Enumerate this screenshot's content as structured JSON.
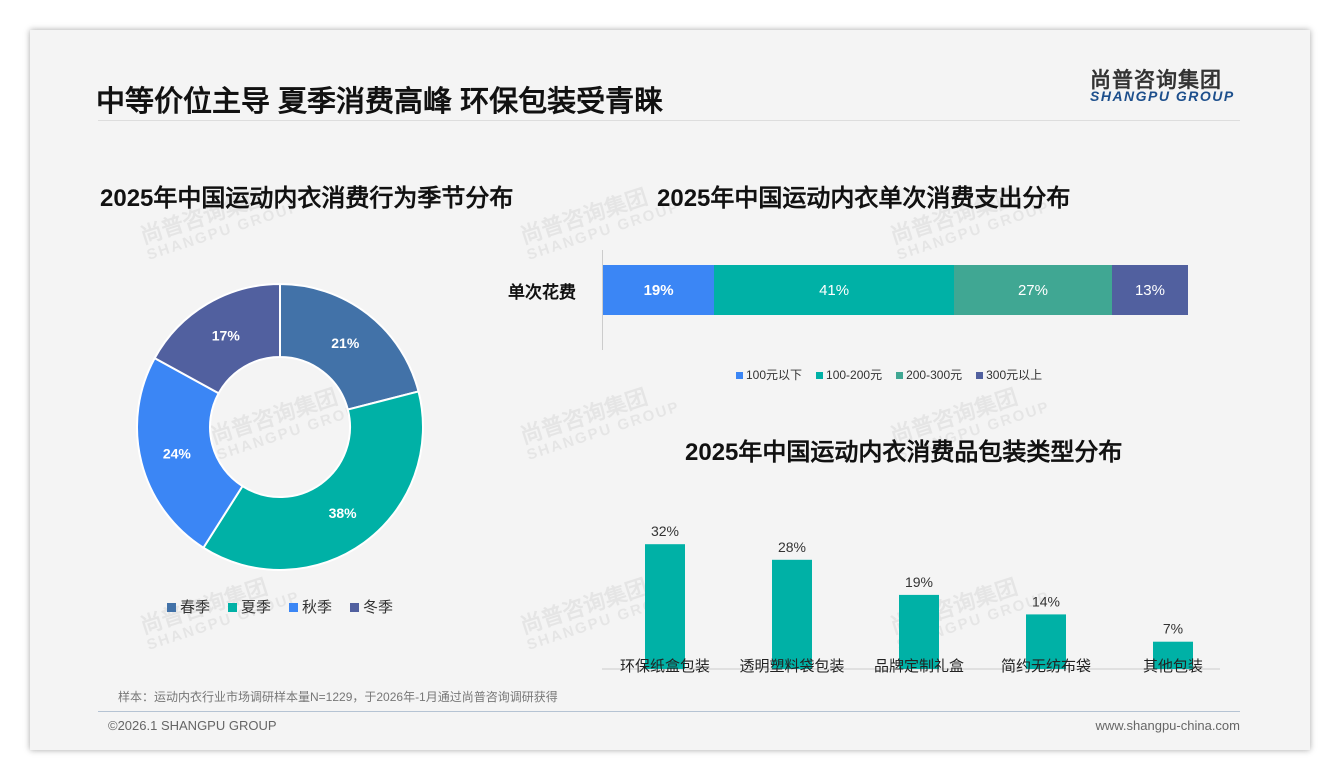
{
  "header": {
    "title": "中等价位主导 夏季消费高峰 环保包装受青睐",
    "logo_cn": "尚普咨询集团",
    "logo_en": "SHANGPU GROUP"
  },
  "watermark": {
    "cn": "尚普咨询集团",
    "en": "SHANGPU GROUP"
  },
  "chart_data": [
    {
      "type": "pie",
      "title": "2025年中国运动内衣消费行为季节分布",
      "donut": true,
      "labels": [
        "春季",
        "夏季",
        "秋季",
        "冬季"
      ],
      "values": [
        21,
        38,
        24,
        17
      ],
      "data_labels": [
        "21%",
        "38%",
        "24%",
        "17%"
      ],
      "colors": [
        "#4272a8",
        "#00b1a6",
        "#3b86f5",
        "#51609f"
      ],
      "legend": "bottom"
    },
    {
      "type": "bar",
      "stacked": true,
      "orientation": "horizontal",
      "title": "2025年中国运动内衣单次消费支出分布",
      "categories": [
        "单次花费"
      ],
      "series": [
        {
          "name": "100元以下",
          "values": [
            19
          ],
          "label": "19%",
          "color": "#3b86f5"
        },
        {
          "name": "100-200元",
          "values": [
            41
          ],
          "label": "41%",
          "color": "#00b1a6"
        },
        {
          "name": "200-300元",
          "values": [
            27
          ],
          "label": "27%",
          "color": "#40a793"
        },
        {
          "name": "300元以上",
          "values": [
            13
          ],
          "label": "13%",
          "color": "#51609f"
        }
      ],
      "legend": "bottom"
    },
    {
      "type": "bar",
      "title": "2025年中国运动内衣消费品包装类型分布",
      "categories": [
        "环保纸盒包装",
        "透明塑料袋包装",
        "品牌定制礼盒",
        "简约无纺布袋",
        "其他包装"
      ],
      "values": [
        32,
        28,
        19,
        14,
        7
      ],
      "data_labels": [
        "32%",
        "28%",
        "19%",
        "14%",
        "7%"
      ],
      "color": "#00b1a6",
      "ylim": [
        0,
        35
      ]
    }
  ],
  "footer": {
    "note": "样本：运动内衣行业市场调研样本量N=1229，于2026年-1月通过尚普咨询调研获得",
    "copyright": "©2026.1 SHANGPU GROUP",
    "url": "www.shangpu-china.com"
  }
}
